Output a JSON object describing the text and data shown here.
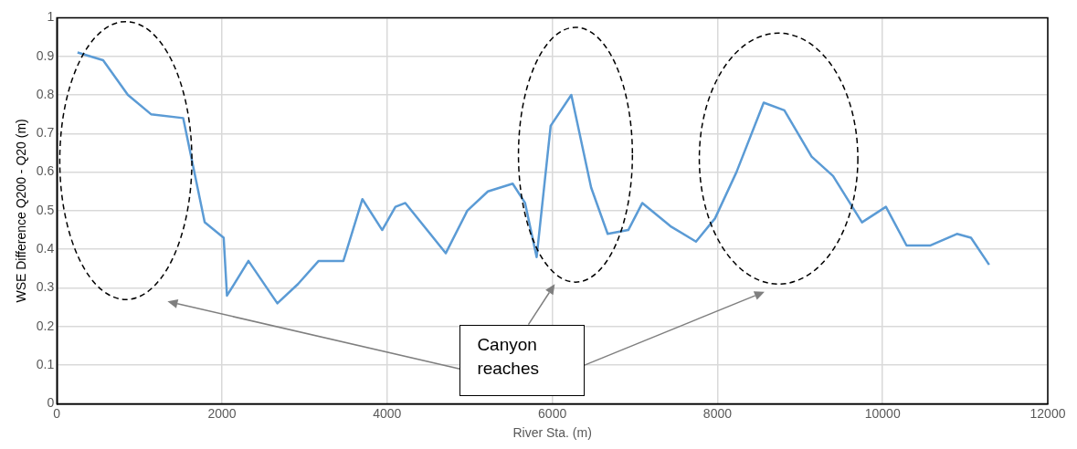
{
  "chart_data": {
    "type": "line",
    "xlabel": "River Sta. (m)",
    "ylabel": "WSE Difference Q200 - Q20 (m)",
    "x": [
      250,
      560,
      860,
      1140,
      1530,
      1790,
      2020,
      2060,
      2320,
      2670,
      2920,
      3170,
      3470,
      3700,
      3940,
      4100,
      4220,
      4710,
      4970,
      5220,
      5520,
      5670,
      5810,
      5980,
      6230,
      6470,
      6670,
      6920,
      7090,
      7430,
      7740,
      7970,
      8230,
      8560,
      8810,
      9140,
      9400,
      9750,
      10040,
      10290,
      10580,
      10900,
      11070,
      11290
    ],
    "series": [
      {
        "color": "#5b9bd5",
        "values": [
          0.91,
          0.89,
          0.8,
          0.75,
          0.74,
          0.47,
          0.43,
          0.28,
          0.37,
          0.26,
          0.31,
          0.37,
          0.37,
          0.53,
          0.45,
          0.51,
          0.52,
          0.39,
          0.5,
          0.55,
          0.57,
          0.52,
          0.38,
          0.72,
          0.8,
          0.56,
          0.44,
          0.45,
          0.52,
          0.46,
          0.42,
          0.48,
          0.6,
          0.78,
          0.76,
          0.64,
          0.59,
          0.47,
          0.51,
          0.41,
          0.41,
          0.44,
          0.43,
          0.36
        ]
      }
    ],
    "xlim": [
      0,
      12000
    ],
    "xticks": [
      0,
      2000,
      4000,
      6000,
      8000,
      10000,
      12000
    ],
    "ylim": [
      0,
      1
    ],
    "yticks": [
      0,
      {
        "value": 0.1,
        "label": "0.1"
      },
      {
        "value": 0.2,
        "label": "0.2"
      },
      {
        "value": 0.3,
        "label": "0.3"
      },
      {
        "value": 0.4,
        "label": "0.4"
      },
      {
        "value": 0.5,
        "label": "0.5"
      },
      {
        "value": 0.6,
        "label": "0.6"
      },
      {
        "value": 0.7,
        "label": "0.7"
      },
      {
        "value": 0.8,
        "label": "0.8"
      },
      {
        "value": 0.9,
        "label": "0.9"
      },
      1
    ],
    "grid": true,
    "legend": false,
    "marker": "none",
    "line_style": "solid",
    "annotations": [
      "Canyon reaches"
    ]
  }
}
